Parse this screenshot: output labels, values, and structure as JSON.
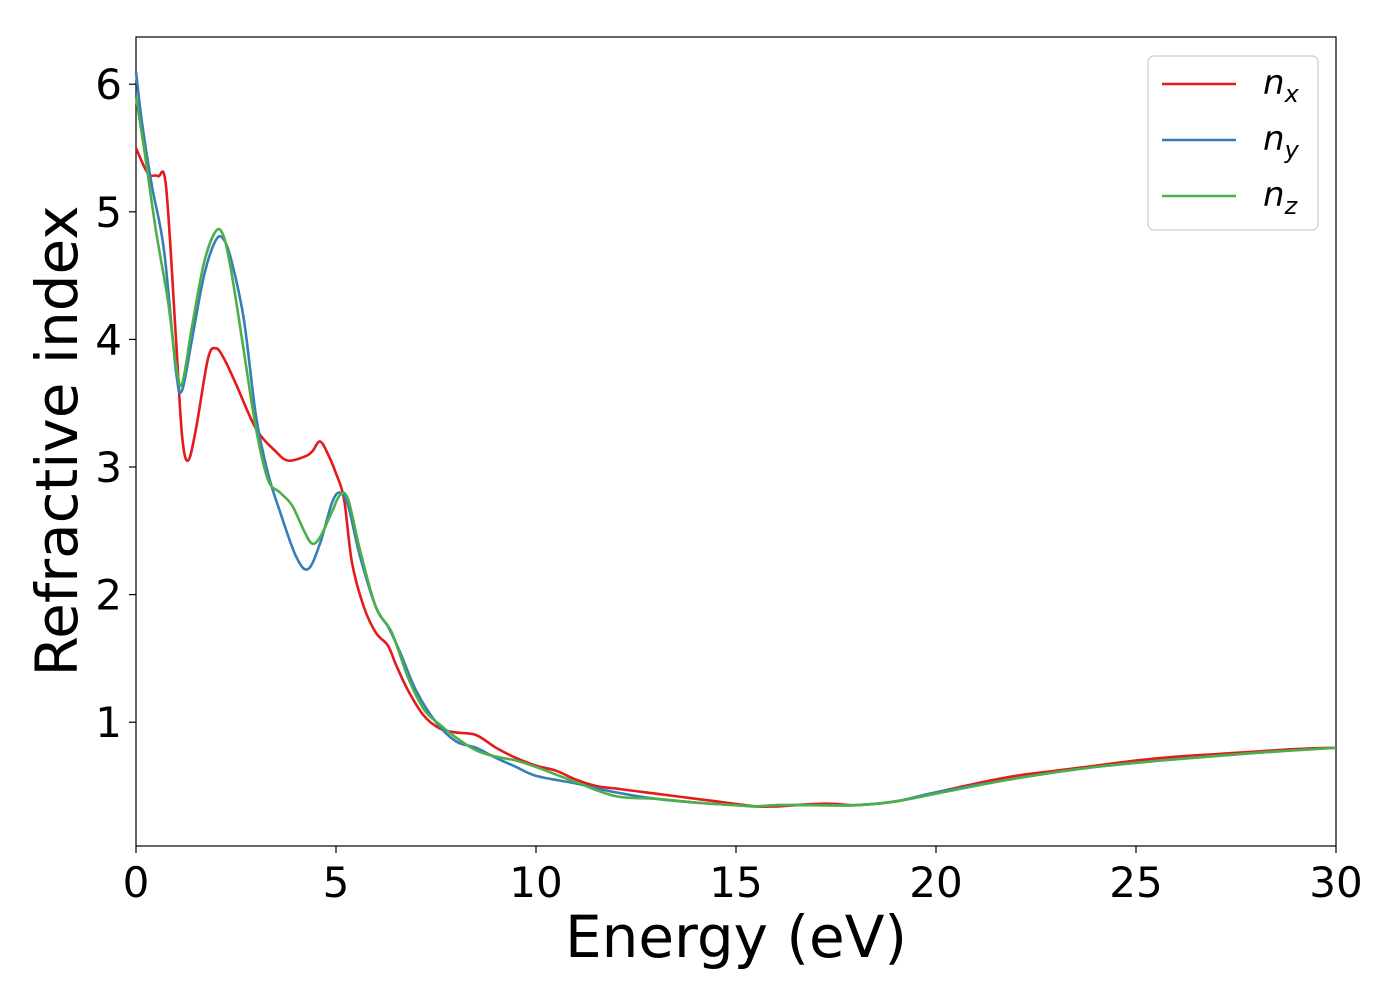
{
  "chart_data": {
    "type": "line",
    "title": "",
    "xlabel": "Energy (eV)",
    "ylabel": "Refractive index",
    "xlim": [
      0,
      30
    ],
    "ylim": [
      0.03,
      6.37
    ],
    "xticks": [
      "0",
      "5",
      "10",
      "15",
      "20",
      "25",
      "30"
    ],
    "yticks": [
      "1",
      "2",
      "3",
      "4",
      "5",
      "6"
    ],
    "grid": false,
    "legend_position": "top-right",
    "series": [
      {
        "name": "n",
        "subscript": "x",
        "color": "#e41a1c",
        "x": [
          0,
          0.3,
          0.55,
          0.75,
          1.0,
          1.15,
          1.3,
          1.5,
          1.8,
          2.0,
          2.2,
          2.5,
          3.0,
          3.5,
          3.8,
          4.2,
          4.4,
          4.6,
          4.8,
          5.0,
          5.2,
          5.4,
          5.7,
          6.0,
          6.3,
          6.5,
          6.8,
          7.2,
          7.6,
          8.0,
          8.5,
          9.0,
          9.5,
          10.0,
          10.5,
          11.0,
          11.5,
          12.0,
          12.5,
          13.0,
          13.5,
          14.0,
          14.5,
          15.0,
          15.5,
          16.0,
          16.5,
          17.0,
          17.5,
          18.0,
          19.0,
          20.0,
          21.0,
          22.0,
          23.0,
          24.0,
          25.0,
          26.0,
          27.0,
          28.0,
          29.0,
          30.0
        ],
        "values": [
          5.5,
          5.3,
          5.28,
          5.2,
          4.0,
          3.25,
          3.05,
          3.3,
          3.85,
          3.93,
          3.85,
          3.65,
          3.3,
          3.12,
          3.05,
          3.08,
          3.12,
          3.2,
          3.1,
          2.95,
          2.75,
          2.25,
          1.9,
          1.7,
          1.6,
          1.45,
          1.25,
          1.05,
          0.95,
          0.92,
          0.9,
          0.8,
          0.72,
          0.66,
          0.62,
          0.55,
          0.5,
          0.48,
          0.46,
          0.44,
          0.42,
          0.4,
          0.38,
          0.36,
          0.34,
          0.34,
          0.35,
          0.36,
          0.36,
          0.35,
          0.38,
          0.45,
          0.52,
          0.58,
          0.62,
          0.66,
          0.7,
          0.73,
          0.75,
          0.77,
          0.79,
          0.8
        ]
      },
      {
        "name": "n",
        "subscript": "y",
        "color": "#377eb8",
        "x": [
          0,
          0.15,
          0.4,
          0.7,
          1.0,
          1.15,
          1.4,
          1.7,
          2.0,
          2.2,
          2.4,
          2.7,
          3.0,
          3.3,
          3.6,
          4.0,
          4.3,
          4.6,
          4.9,
          5.1,
          5.3,
          5.6,
          6.0,
          6.3,
          6.6,
          7.0,
          7.5,
          8.0,
          8.5,
          9.0,
          9.5,
          10.0,
          11.0,
          12.0,
          13.0,
          14.0,
          15.0,
          15.5,
          16.0,
          17.0,
          18.0,
          19.0,
          20.0,
          22.0,
          24.0,
          26.0,
          28.0,
          30.0
        ],
        "values": [
          6.1,
          5.7,
          5.2,
          4.7,
          3.75,
          3.6,
          4.0,
          4.5,
          4.78,
          4.78,
          4.6,
          4.15,
          3.4,
          2.95,
          2.65,
          2.3,
          2.2,
          2.4,
          2.72,
          2.8,
          2.7,
          2.3,
          1.9,
          1.75,
          1.55,
          1.25,
          1.0,
          0.85,
          0.8,
          0.72,
          0.65,
          0.58,
          0.52,
          0.45,
          0.4,
          0.37,
          0.35,
          0.34,
          0.35,
          0.35,
          0.35,
          0.38,
          0.45,
          0.56,
          0.65,
          0.71,
          0.76,
          0.8
        ]
      },
      {
        "name": "n",
        "subscript": "z",
        "color": "#4daf4a",
        "x": [
          0,
          0.2,
          0.5,
          0.8,
          1.0,
          1.15,
          1.4,
          1.7,
          2.0,
          2.2,
          2.4,
          2.7,
          3.0,
          3.3,
          3.6,
          3.9,
          4.2,
          4.4,
          4.6,
          4.9,
          5.1,
          5.3,
          5.6,
          6.0,
          6.4,
          6.8,
          7.2,
          7.6,
          8.0,
          8.5,
          9.0,
          9.5,
          10.0,
          11.0,
          12.0,
          13.0,
          14.0,
          15.0,
          15.5,
          16.0,
          17.0,
          18.0,
          19.0,
          20.0,
          22.0,
          24.0,
          26.0,
          28.0,
          30.0
        ],
        "values": [
          5.9,
          5.5,
          4.85,
          4.3,
          3.8,
          3.65,
          4.1,
          4.6,
          4.85,
          4.8,
          4.5,
          3.9,
          3.3,
          2.9,
          2.8,
          2.7,
          2.5,
          2.4,
          2.45,
          2.65,
          2.78,
          2.75,
          2.35,
          1.9,
          1.7,
          1.35,
          1.1,
          0.98,
          0.88,
          0.78,
          0.73,
          0.7,
          0.65,
          0.53,
          0.42,
          0.4,
          0.37,
          0.35,
          0.34,
          0.35,
          0.35,
          0.35,
          0.38,
          0.44,
          0.56,
          0.65,
          0.71,
          0.76,
          0.8
        ]
      }
    ]
  }
}
